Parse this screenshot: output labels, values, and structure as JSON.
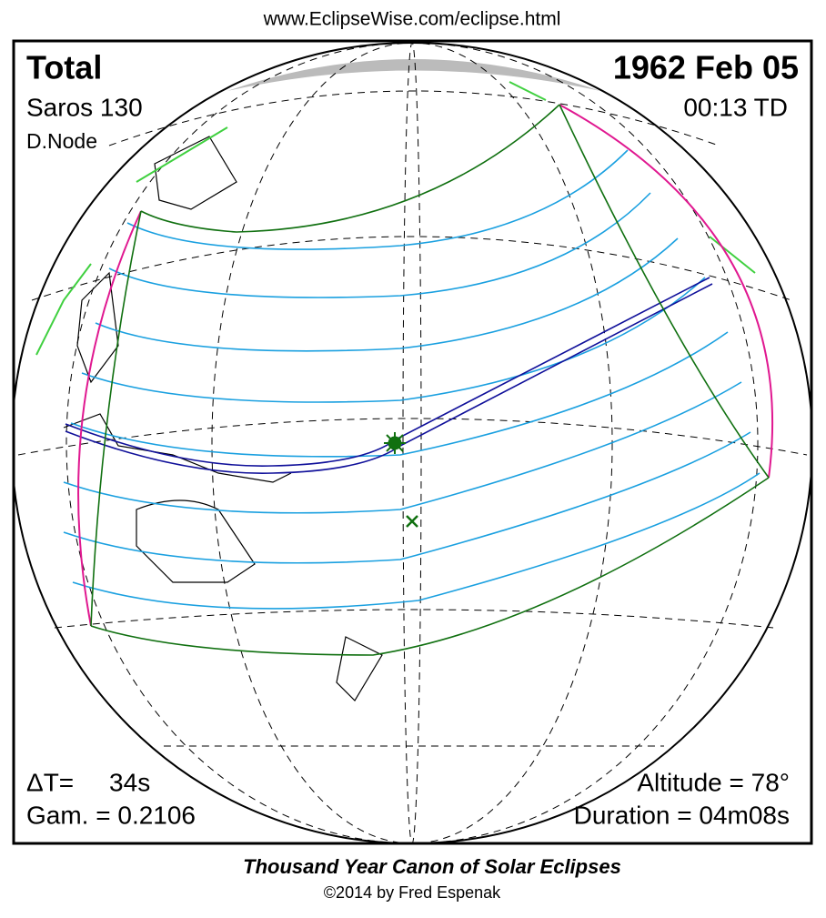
{
  "header": {
    "url": "www.EclipseWise.com/eclipse.html"
  },
  "map": {
    "eclipse_type": "Total",
    "date": "1962 Feb 05",
    "saros": "Saros 130",
    "time": "00:13 TD",
    "node": "D.Node",
    "delta_t": "ΔT=     34s",
    "gamma": "Gam. = 0.2106",
    "altitude": "Altitude = 78°",
    "duration": "Duration = 04m08s"
  },
  "footer": {
    "title": "Thousand Year Canon of Solar Eclipses",
    "copyright": "©2014 by Fred Espenak"
  }
}
